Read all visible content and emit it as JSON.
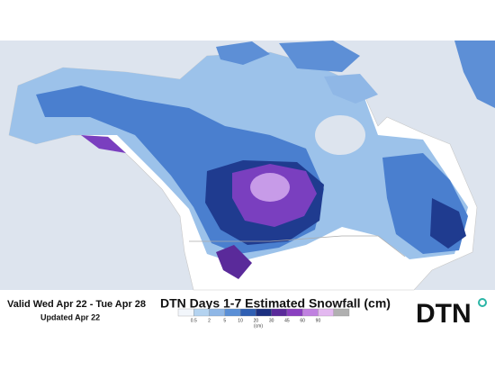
{
  "header": {
    "valid": "Valid Wed Apr 22 - Tue Apr 28",
    "updated": "Updated Apr 22"
  },
  "legend": {
    "title": "DTN Days 1-7 Estimated Snowfall (cm)",
    "labels": [
      "0.5",
      "2",
      "5",
      "10",
      "20",
      "30",
      "45",
      "60",
      "90"
    ],
    "unit": "(cm)"
  },
  "logo": {
    "text": "DTN"
  }
}
